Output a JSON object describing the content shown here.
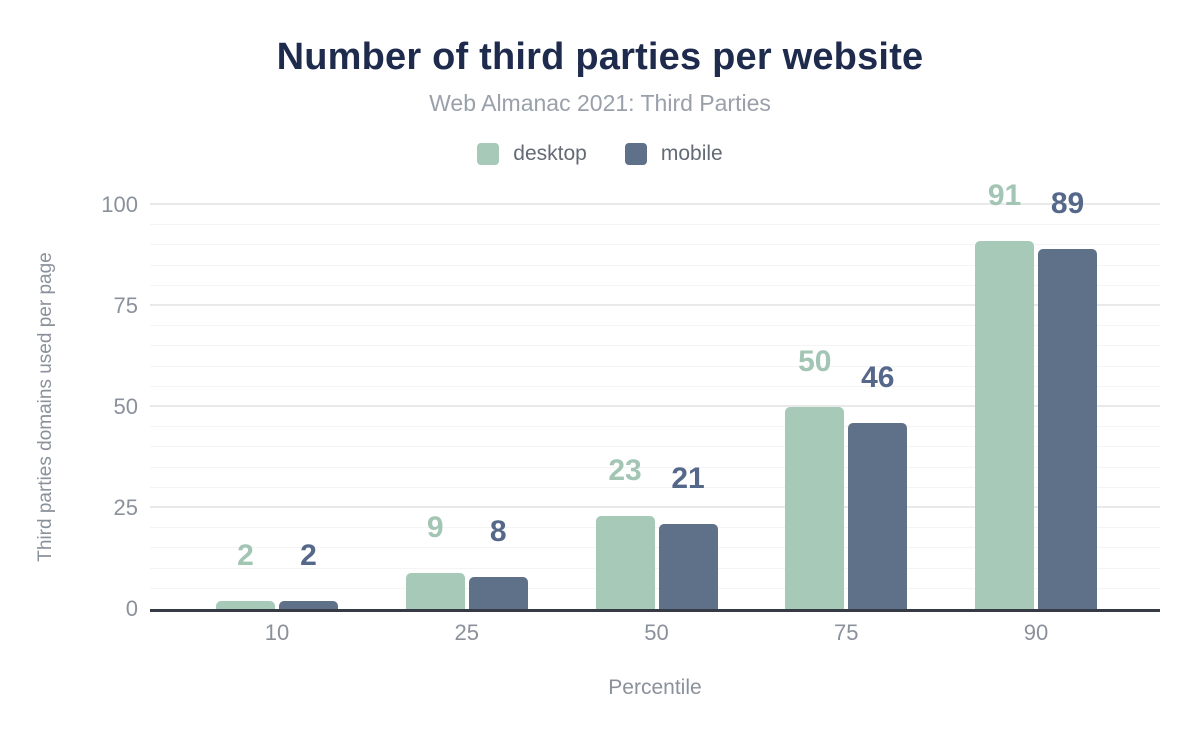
{
  "header": {
    "title": "Number of third parties per website",
    "subtitle": "Web Almanac 2021: Third Parties"
  },
  "legend": {
    "items": [
      {
        "id": "desktop",
        "label": "desktop",
        "color": "#a6c9b8"
      },
      {
        "id": "mobile",
        "label": "mobile",
        "color": "#5f7089"
      }
    ]
  },
  "chart_data": {
    "type": "bar",
    "title": "Number of third parties per website",
    "subtitle": "Web Almanac 2021: Third Parties",
    "categories": [
      "10",
      "25",
      "50",
      "75",
      "90"
    ],
    "series": [
      {
        "name": "desktop",
        "color": "#a6c9b8",
        "label_color": "#a2c5b4",
        "values": [
          2,
          9,
          23,
          50,
          91
        ]
      },
      {
        "name": "mobile",
        "color": "#5f7089",
        "label_color": "#56688a",
        "values": [
          2,
          8,
          21,
          46,
          89
        ]
      }
    ],
    "xlabel": "Percentile",
    "ylabel": "Third parties domains used per page",
    "ylim": [
      0,
      100
    ],
    "yticks": [
      0,
      25,
      50,
      75,
      100
    ],
    "minor_grid_step": 5,
    "grid": "horizontal-only",
    "legend_position": "top",
    "data_labels": true
  },
  "colors": {
    "background": "#ffffff",
    "title": "#1e2b4d",
    "subtitle": "#9aa0aa",
    "legend_text": "#646b75",
    "axis_text": "#8b919b",
    "axis_line": "#353a45",
    "grid_minor": "#f4f4f4",
    "grid_major": "#e9e9e9"
  }
}
